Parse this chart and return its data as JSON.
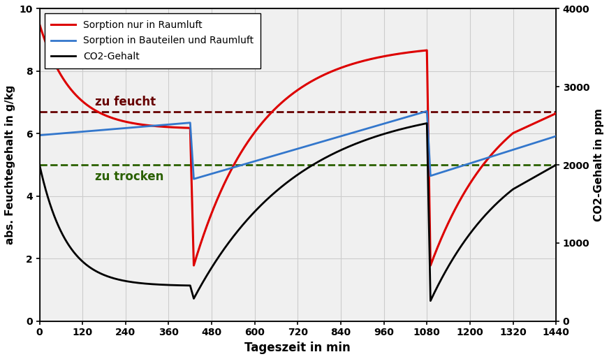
{
  "title": "",
  "xlabel": "Tageszeit in min",
  "ylabel_left": "abs. Feuchtegehalt in g/kg",
  "ylabel_right": "CO2-Gehalt in ppm",
  "xlim": [
    0,
    1440
  ],
  "ylim_left": [
    0,
    10
  ],
  "ylim_right": [
    0,
    4000
  ],
  "xticks": [
    0,
    120,
    240,
    360,
    480,
    600,
    720,
    840,
    960,
    1080,
    1200,
    1320,
    1440
  ],
  "yticks_left": [
    0,
    2,
    4,
    6,
    8,
    10
  ],
  "yticks_right": [
    0,
    1000,
    2000,
    3000,
    4000
  ],
  "feucht_level": 6.7,
  "trocken_level": 5.0,
  "feucht_label": "zu feucht",
  "trocken_label": "zu trocken",
  "legend": [
    "Sorption nur in Raumluft",
    "Sorption in Bauteilen und Raumluft",
    "CO2-Gehalt"
  ],
  "line_colors": [
    "#dd0000",
    "#3377cc",
    "#000000"
  ],
  "feucht_color": "#660000",
  "trocken_color": "#2a6000",
  "background_color": "#f0f0f0",
  "grid_color": "#cccccc",
  "win1_start": 420,
  "win1_end": 430,
  "win2_start": 1080,
  "win2_end": 1090
}
